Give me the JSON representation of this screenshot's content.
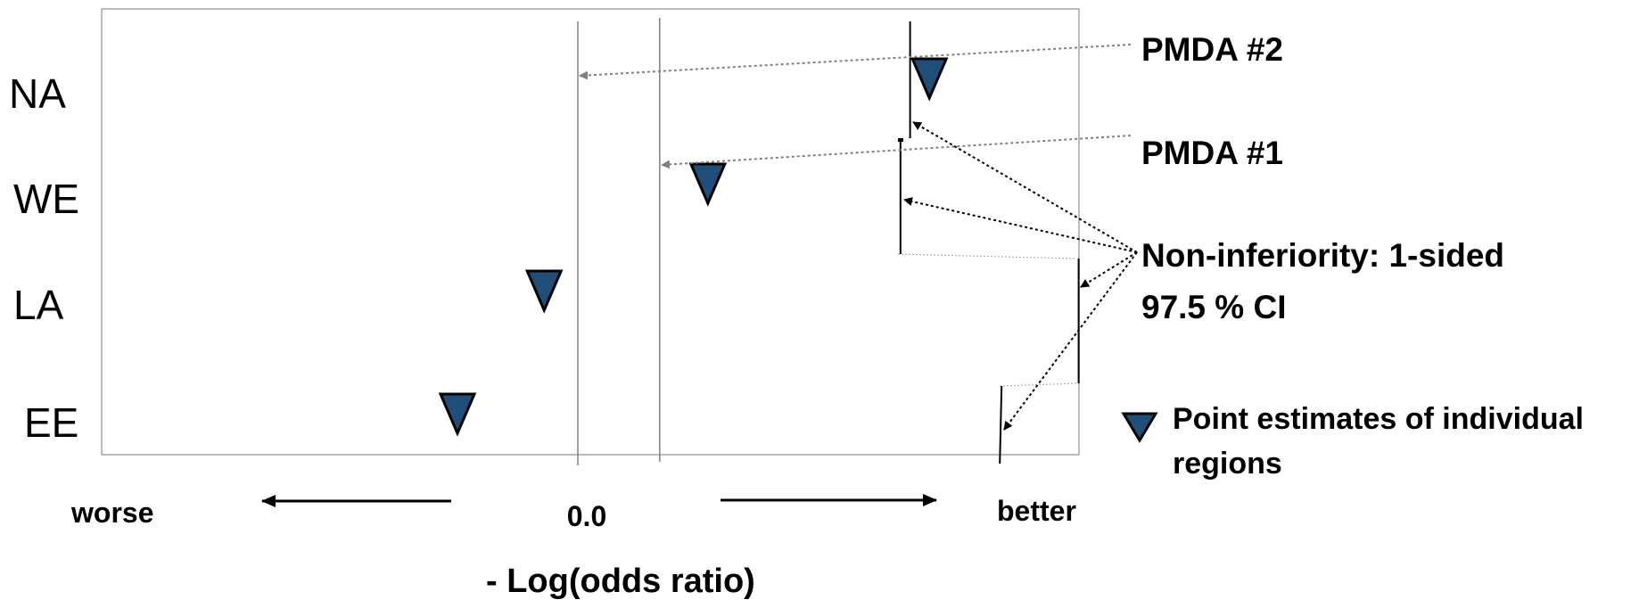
{
  "chart_data": {
    "type": "scatter",
    "title": "",
    "xlabel": "- Log(odds ratio)",
    "direction_labels": {
      "left": "worse",
      "right": "better"
    },
    "x_tick_label": "0.0",
    "xlim": [
      -0.5,
      0.53
    ],
    "categories": [
      "NA",
      "WE",
      "LA",
      "EE"
    ],
    "point_estimates": [
      {
        "region": "NA",
        "value": 0.365
      },
      {
        "region": "WE",
        "value": 0.135
      },
      {
        "region": "LA",
        "value": -0.035
      },
      {
        "region": "EE",
        "value": -0.125
      }
    ],
    "ci_bounds": [
      {
        "region": "NA",
        "lower": 0.345
      },
      {
        "region": "WE",
        "lower": 0.335
      },
      {
        "region": "LA",
        "lower": 0.52
      },
      {
        "region": "EE",
        "lower": 0.44
      }
    ],
    "reference_lines": [
      {
        "name": "PMDA #2",
        "value": 0.0
      },
      {
        "name": "PMDA #1",
        "value": 0.085
      }
    ],
    "annotations": {
      "pmda2": "PMDA #2",
      "pmda1": "PMDA #1",
      "noninferiority_line1": "Non-inferiority: 1-sided",
      "noninferiority_line2": "97.5 % CI"
    },
    "legend": {
      "line1": "Point estimates of individual",
      "line2": "regions",
      "marker_color": "#1F4E79"
    },
    "colors": {
      "marker": "#1F4E79",
      "frame": "#A6A6A6",
      "arrow_grey": "#7F7F7F"
    },
    "grid": false
  }
}
